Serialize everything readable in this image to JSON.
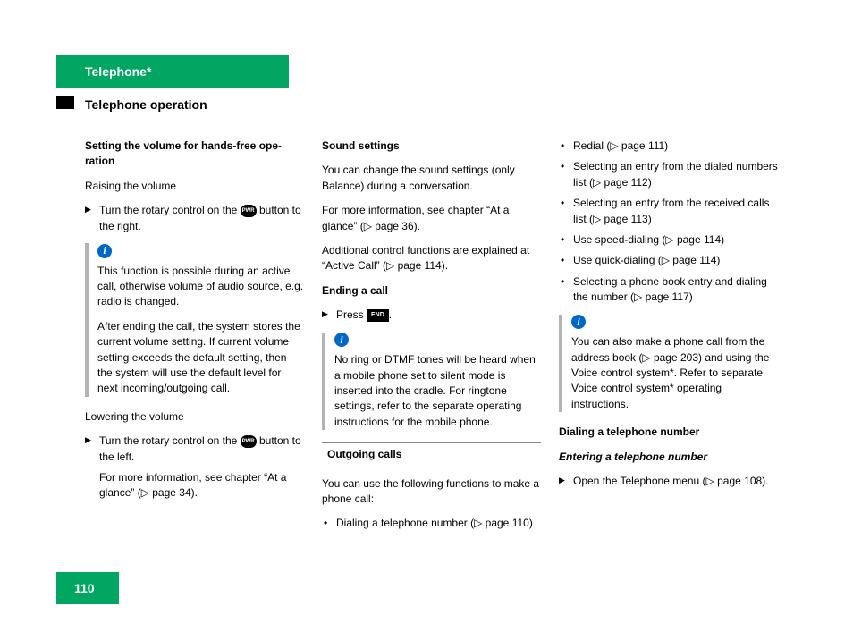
{
  "header": {
    "title": "Telephone*"
  },
  "subtitle": "Telephone operation",
  "page_number": "110",
  "col1": {
    "h1": "Setting the volume for hands-free ope­ration",
    "p1": "Raising the volume",
    "a1_pre": "Turn the rotary control on the ",
    "a1_btn": "PWR",
    "a1_post": " but­ton to the right.",
    "info1_p1": "This function is possible during an active call, otherwise volume of audio source, e.g. radio is changed.",
    "info1_p2": "After ending the call, the system stores the current volume setting. If current volume setting exceeds the default set­ting, then the system will use the de­fault level for next incoming/outgoing call.",
    "p2": "Lowering the volume",
    "a2_pre": "Turn the rotary control on the ",
    "a2_btn": "PWR",
    "a2_post": " but­ton to the left.",
    "p3": "For more information, see chapter “At a glance” (▷ page 34)."
  },
  "col2": {
    "h1": "Sound settings",
    "p1": "You can change the sound settings (only Balance) during a conversation.",
    "p2": "For more information, see chapter “At a glance” (▷ page 36).",
    "p3": "Additional control functions are explained at “Active Call” (▷ page 114).",
    "h2": "Ending a call",
    "a1_pre": "Press ",
    "a1_btn": "END",
    "a1_post": ".",
    "info1_p1": "No ring or DTMF tones will be heard when a mobile phone set to silent mode is inserted into the cradle. For ringtone settings, refer to the separate opera­ting instructions for the mobile phone.",
    "section": "Outgoing calls",
    "p4": "You can use the following functions to make a phone call:",
    "b1": "Dialing a telephone number (▷ page 110)"
  },
  "col3": {
    "b1": "Redial (▷ page 111)",
    "b2": "Selecting an entry from the dialed numbers list (▷ page 112)",
    "b3": "Selecting an entry from the received calls list (▷ page 113)",
    "b4": "Use speed-dialing (▷ page 114)",
    "b5": "Use quick-dialing (▷ page 114)",
    "b6": "Selecting a phone book entry and dialing the number (▷ page 117)",
    "info1_p1": "You can also make a phone call from the address book (▷ page 203) and using the Voice control system*. Refer to separate Voice control system* operating instructions.",
    "h1": "Dialing a telephone number",
    "h2": "Entering a telephone number",
    "a1": "Open the Telephone menu (▷ page 108)."
  }
}
